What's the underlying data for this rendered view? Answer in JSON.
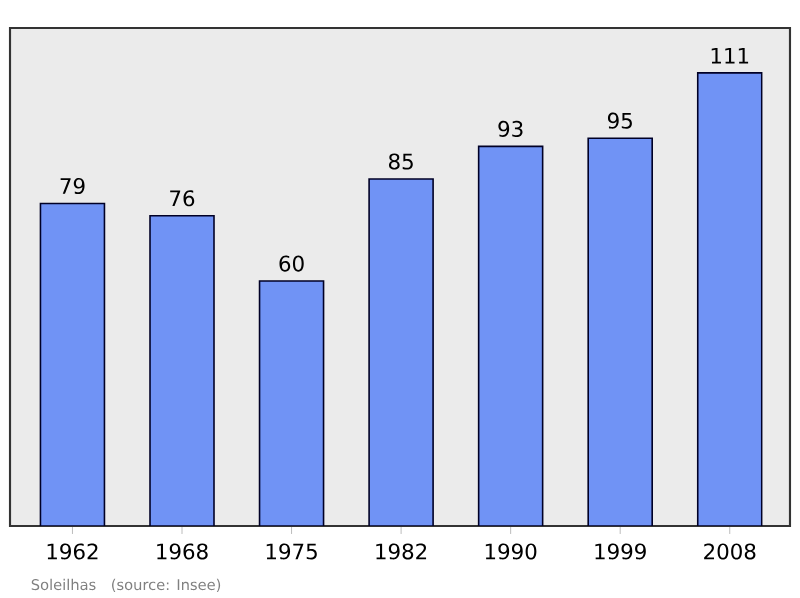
{
  "chart_data": {
    "type": "bar",
    "categories": [
      "1962",
      "1968",
      "1975",
      "1982",
      "1990",
      "1999",
      "2008"
    ],
    "values": [
      79,
      76,
      60,
      85,
      93,
      95,
      111
    ],
    "color": "#7093f5",
    "ylim": [
      0,
      122
    ],
    "data_labels": true,
    "tick_labels": "x",
    "annotations": [
      "Soleilhas",
      "(source: Insee)"
    ]
  }
}
